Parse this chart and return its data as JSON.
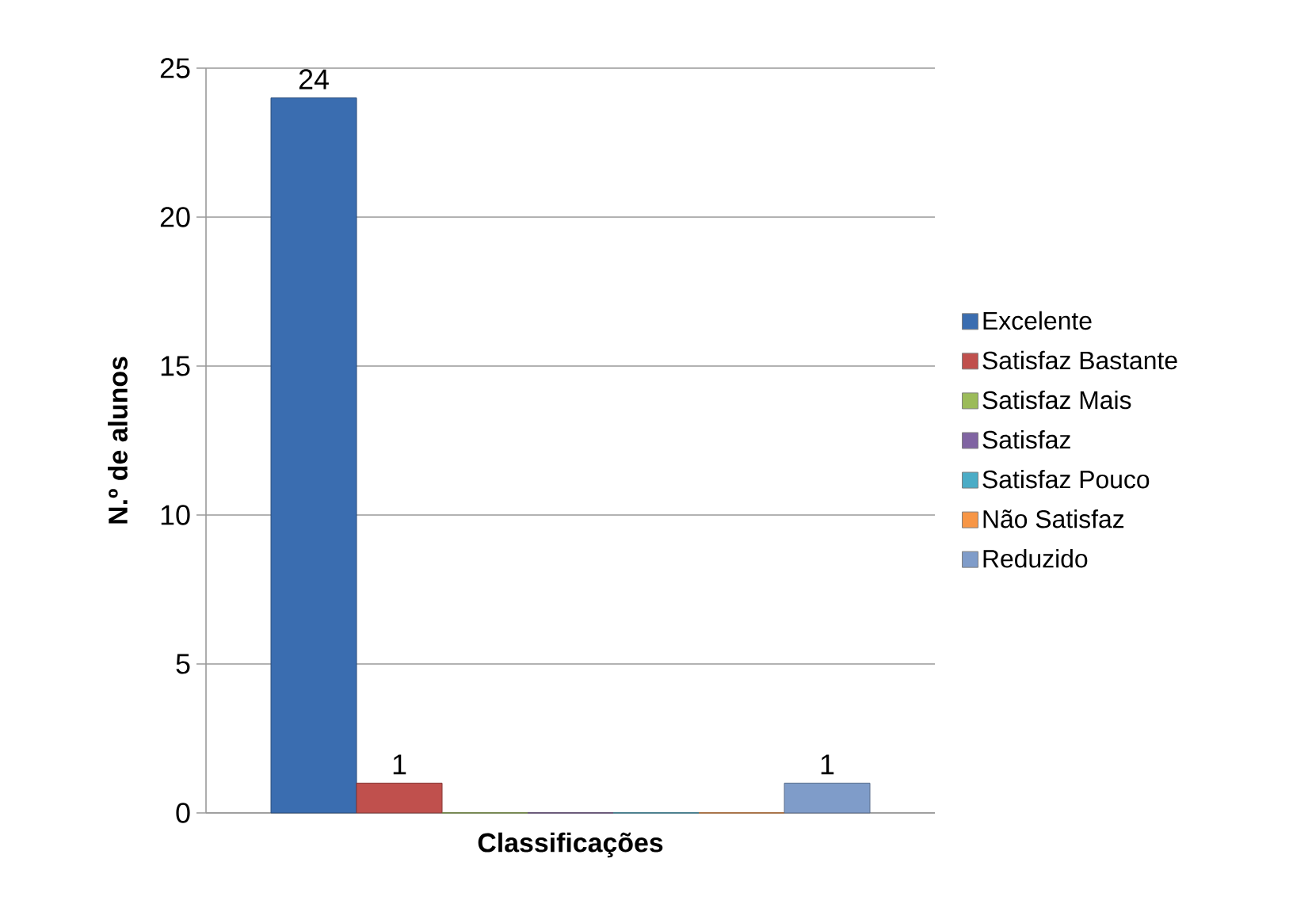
{
  "chart_data": {
    "type": "bar",
    "xlabel": "Classificações",
    "ylabel": "N.º de alunos",
    "categories": [
      null
    ],
    "series": [
      {
        "name": "Excelente",
        "color": "#3a6db0",
        "values": [
          24
        ],
        "value_labels": [
          "24"
        ]
      },
      {
        "name": "Satisfaz Bastante",
        "color": "#c0504d",
        "values": [
          1
        ],
        "value_labels": [
          "1"
        ]
      },
      {
        "name": "Satisfaz Mais",
        "color": "#9bbb59",
        "values": [
          0
        ],
        "value_labels": [
          null
        ]
      },
      {
        "name": "Satisfaz",
        "color": "#8064a2",
        "values": [
          0
        ],
        "value_labels": [
          null
        ]
      },
      {
        "name": "Satisfaz Pouco",
        "color": "#4bacc6",
        "values": [
          0
        ],
        "value_labels": [
          null
        ]
      },
      {
        "name": "Não Satisfaz",
        "color": "#f79646",
        "values": [
          0
        ],
        "value_labels": [
          null
        ]
      },
      {
        "name": "Reduzido",
        "color": "#7f9cc9",
        "values": [
          1
        ],
        "value_labels": [
          "1"
        ]
      }
    ],
    "ylim": [
      0,
      25
    ],
    "yticks": [
      0,
      5,
      10,
      15,
      20,
      25
    ],
    "grid": "y",
    "legend": "right"
  }
}
